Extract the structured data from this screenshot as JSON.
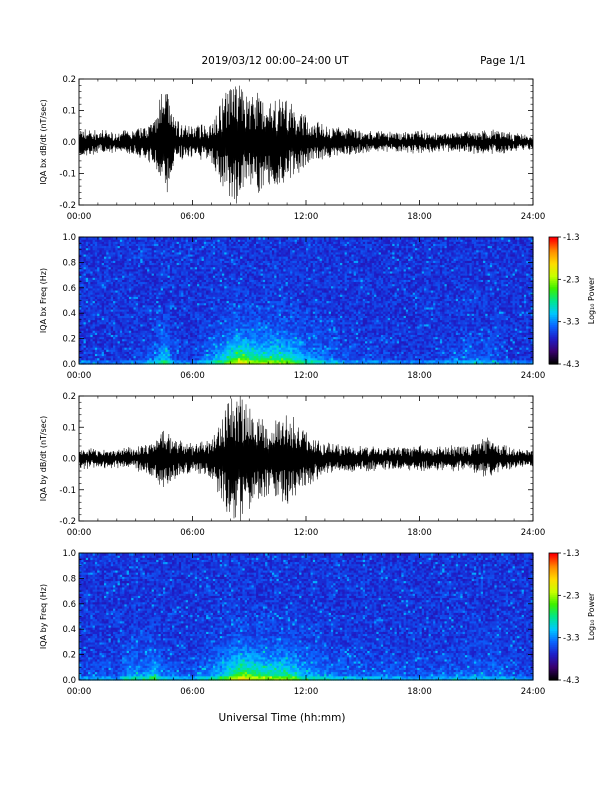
{
  "header": {
    "title": "2019/03/12  00:00–24:00 UT",
    "page": "Page 1/1"
  },
  "footer": {
    "xlabel": "Universal Time (hh:mm)"
  },
  "colors": {
    "frame": "#000000",
    "trace": "#000000",
    "background": "#ffffff"
  },
  "colorbar": {
    "title": "Log₁₀ Power",
    "ticks": [
      "-1.3",
      "-2.3",
      "-3.3",
      "-4.3"
    ],
    "range": [
      -4.3,
      -1.3
    ],
    "colormap": [
      "#000000",
      "#3a0070",
      "#1e1ec8",
      "#0a64ff",
      "#00c8ff",
      "#00e68c",
      "#3cf000",
      "#c8ff00",
      "#ffdc00",
      "#ff8c00",
      "#ff0000"
    ]
  },
  "chart_data": [
    {
      "type": "line",
      "title": "",
      "xlabel": "",
      "ylabel": "IQA bx dB/dt (nT/sec)",
      "xlim": [
        0,
        24
      ],
      "ylim": [
        -0.2,
        0.2
      ],
      "xticks": [
        "00:00",
        "06:00",
        "12:00",
        "18:00",
        "24:00"
      ],
      "yticks": [
        "0.2",
        "0.1",
        "0.0",
        "-0.1",
        "-0.2"
      ],
      "envelope": {
        "x": [
          0,
          1,
          2,
          3,
          4,
          4.5,
          5,
          5.5,
          6,
          7,
          7.5,
          8,
          8.3,
          8.6,
          9,
          9.5,
          10,
          10.5,
          11,
          11.5,
          12,
          13,
          14,
          15,
          16,
          17,
          18,
          19,
          20,
          21,
          21.5,
          22,
          23,
          24
        ],
        "amplitude": [
          0.045,
          0.035,
          0.03,
          0.04,
          0.07,
          0.2,
          0.08,
          0.05,
          0.05,
          0.06,
          0.14,
          0.18,
          0.2,
          0.18,
          0.14,
          0.16,
          0.13,
          0.15,
          0.13,
          0.1,
          0.08,
          0.05,
          0.045,
          0.035,
          0.03,
          0.03,
          0.035,
          0.03,
          0.03,
          0.035,
          0.045,
          0.04,
          0.025,
          0.02
        ]
      }
    },
    {
      "type": "heatmap",
      "title": "",
      "xlabel": "",
      "ylabel": "IQA bx Freq (Hz)",
      "xlim": [
        0,
        24
      ],
      "ylim": [
        0,
        1
      ],
      "xticks": [
        "00:00",
        "06:00",
        "12:00",
        "18:00",
        "24:00"
      ],
      "yticks": [
        "1.0",
        "0.8",
        "0.6",
        "0.4",
        "0.2",
        "0.0"
      ],
      "zrange": [
        -4.3,
        -1.3
      ],
      "activity": {
        "x": [
          0,
          2,
          4,
          4.5,
          5,
          6,
          7.5,
          8.3,
          8.6,
          9,
          10,
          11,
          12,
          14,
          18,
          21,
          22,
          24
        ],
        "level": [
          0.35,
          0.3,
          0.45,
          0.65,
          0.4,
          0.35,
          0.6,
          0.85,
          0.9,
          0.8,
          0.75,
          0.75,
          0.55,
          0.4,
          0.35,
          0.45,
          0.4,
          0.3
        ]
      }
    },
    {
      "type": "line",
      "title": "",
      "xlabel": "",
      "ylabel": "IQA by dB/dt (nT/sec)",
      "xlim": [
        0,
        24
      ],
      "ylim": [
        -0.2,
        0.2
      ],
      "xticks": [
        "00:00",
        "06:00",
        "12:00",
        "18:00",
        "24:00"
      ],
      "yticks": [
        "0.2",
        "0.1",
        "0.0",
        "-0.1",
        "-0.2"
      ],
      "envelope": {
        "x": [
          0,
          1,
          2,
          3,
          4,
          4.5,
          5,
          5.5,
          6,
          7,
          7.5,
          8,
          8.3,
          8.6,
          9,
          9.5,
          10,
          10.5,
          11,
          11.5,
          12,
          13,
          14,
          15,
          16,
          17,
          18,
          19,
          20,
          21,
          21.5,
          22,
          23,
          24
        ],
        "amplitude": [
          0.03,
          0.03,
          0.03,
          0.035,
          0.06,
          0.1,
          0.07,
          0.05,
          0.05,
          0.06,
          0.13,
          0.2,
          0.2,
          0.2,
          0.16,
          0.14,
          0.12,
          0.13,
          0.15,
          0.12,
          0.09,
          0.05,
          0.045,
          0.04,
          0.035,
          0.035,
          0.04,
          0.035,
          0.04,
          0.05,
          0.07,
          0.05,
          0.03,
          0.025
        ]
      }
    },
    {
      "type": "heatmap",
      "title": "",
      "xlabel": "",
      "ylabel": "IQA by Freq (Hz)",
      "xlim": [
        0,
        24
      ],
      "ylim": [
        0,
        1
      ],
      "xticks": [
        "00:00",
        "06:00",
        "12:00",
        "18:00",
        "24:00"
      ],
      "yticks": [
        "1.0",
        "0.8",
        "0.6",
        "0.4",
        "0.2",
        "0.0"
      ],
      "zrange": [
        -4.3,
        -1.3
      ],
      "activity": {
        "x": [
          0,
          2,
          2.8,
          3.5,
          3.9,
          4.5,
          6,
          7.5,
          8.3,
          8.6,
          9,
          10,
          11,
          12,
          14,
          18,
          21,
          22,
          24
        ],
        "level": [
          0.4,
          0.4,
          0.55,
          0.5,
          0.65,
          0.45,
          0.4,
          0.6,
          0.85,
          0.9,
          0.85,
          0.75,
          0.75,
          0.55,
          0.45,
          0.4,
          0.45,
          0.45,
          0.35
        ]
      }
    }
  ]
}
